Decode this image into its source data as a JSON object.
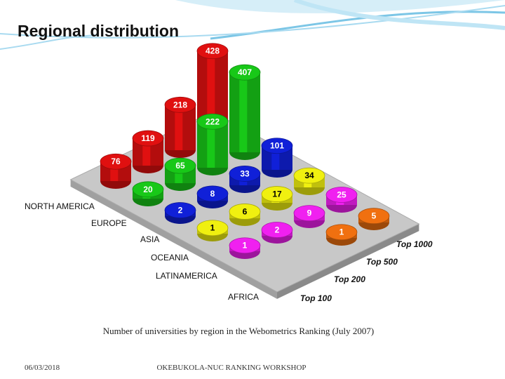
{
  "slide_title": "Regional distribution",
  "chart_data": {
    "type": "bar3d",
    "columns": [
      "Top 100",
      "Top 200",
      "Top 500",
      "Top 1000"
    ],
    "series": [
      {
        "name": "NORTH AMERICA",
        "color": "#e01010",
        "values": [
          76,
          119,
          218,
          428
        ]
      },
      {
        "name": "EUROPE",
        "color": "#18c818",
        "values": [
          20,
          65,
          222,
          407
        ]
      },
      {
        "name": "ASIA",
        "color": "#1020d8",
        "values": [
          2,
          8,
          33,
          101
        ]
      },
      {
        "name": "OCEANIA",
        "color": "#f0f010",
        "values": [
          1,
          6,
          17,
          34
        ]
      },
      {
        "name": "LATINAMERICA",
        "color": "#f020f0",
        "values": [
          1,
          2,
          9,
          25
        ]
      },
      {
        "name": "AFRICA",
        "color": "#f07010",
        "values": [
          null,
          null,
          1,
          5
        ]
      }
    ]
  },
  "caption": "Number of universities by region in the Webometrics Ranking (July 2007)",
  "footer": {
    "date": "06/03/2018",
    "event": "OKEBUKOLA-NUC RANKING WORKSHOP"
  }
}
